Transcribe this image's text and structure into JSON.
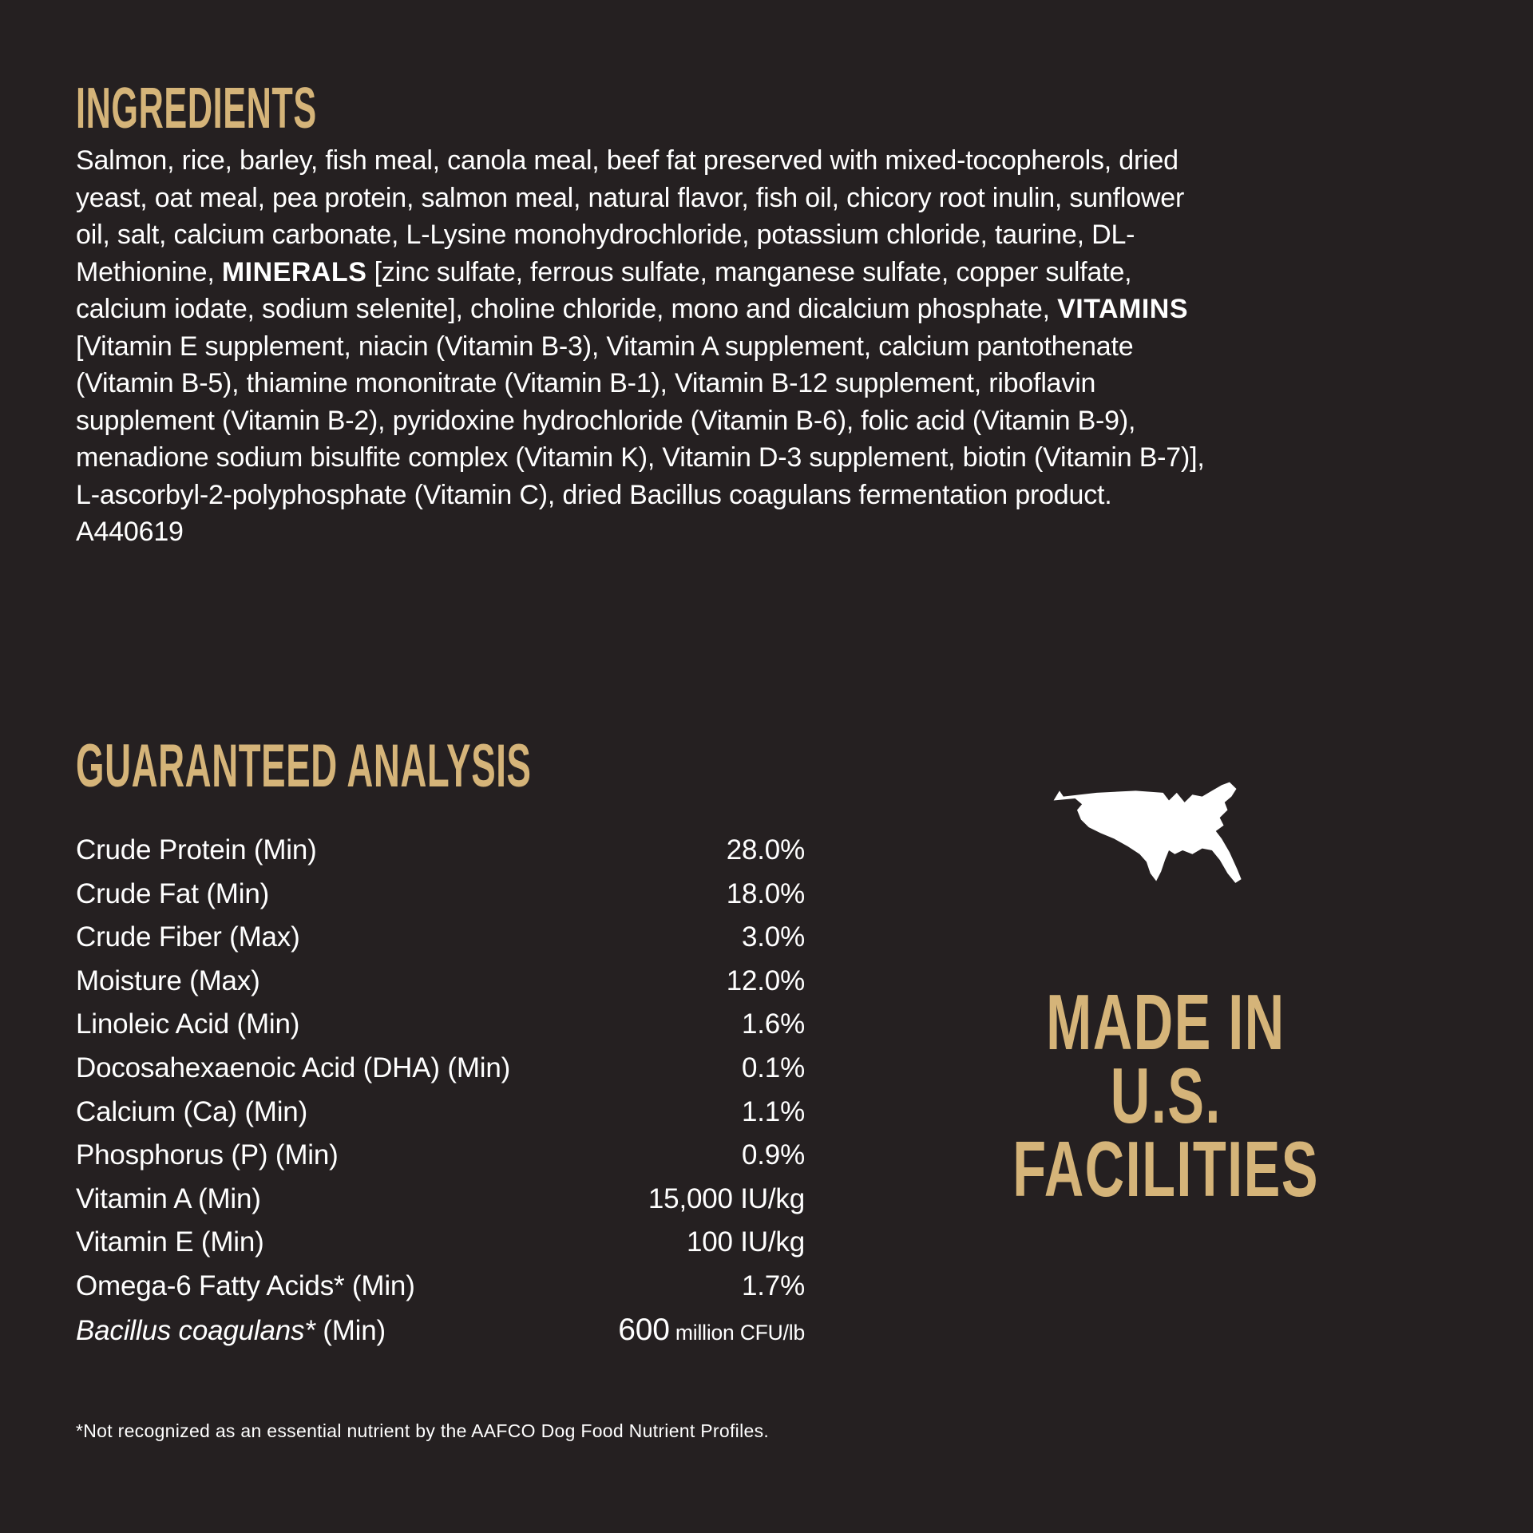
{
  "colors": {
    "background": "#252021",
    "gold": "#D5B479",
    "text": "#FFFFFF",
    "map": "#FFFFFF"
  },
  "ingredients": {
    "heading": "INGREDIENTS",
    "segments": [
      {
        "text": "Salmon, rice, barley, fish meal, canola meal, beef fat preserved with mixed-tocopherols, dried yeast, oat meal, pea protein, salmon meal, natural flavor, fish oil, chicory root inulin, sunflower oil, salt, calcium carbonate, L-Lysine monohydrochloride, potassium chloride, taurine, DL-Methionine, ",
        "bold": false,
        "italic": false
      },
      {
        "text": "MINERALS",
        "bold": true,
        "italic": false
      },
      {
        "text": " [zinc sulfate, ferrous sulfate, manganese sulfate, copper sulfate, calcium iodate, sodium selenite], choline chloride, mono and dicalcium phosphate, ",
        "bold": false,
        "italic": false
      },
      {
        "text": "VITAMINS",
        "bold": true,
        "italic": false
      },
      {
        "text": " [Vitamin E supplement, niacin (Vitamin B-3), Vitamin A supplement, calcium pantothenate (Vitamin B-5), thiamine mononitrate (Vitamin B-1), Vitamin B-12 supplement, riboflavin supplement (Vitamin B-2), pyridoxine hydrochloride (Vitamin B-6), folic acid (Vitamin B-9), menadione sodium bisulfite complex (Vitamin K), Vitamin D-3 supplement, biotin (Vitamin B-7)], L-ascorbyl-2-polyphosphate (Vitamin C), dried Bacillus coagulans fermentation product. A440619",
        "bold": false,
        "italic": false
      }
    ]
  },
  "guaranteed_analysis": {
    "heading": "GUARANTEED ANALYSIS",
    "rows": [
      {
        "label": [
          {
            "text": "Crude Protein (Min)",
            "italic": false
          }
        ],
        "value": [
          {
            "text": "28.0%",
            "size": "normal"
          }
        ]
      },
      {
        "label": [
          {
            "text": "Crude Fat (Min)",
            "italic": false
          }
        ],
        "value": [
          {
            "text": "18.0%",
            "size": "normal"
          }
        ]
      },
      {
        "label": [
          {
            "text": "Crude Fiber (Max)",
            "italic": false
          }
        ],
        "value": [
          {
            "text": "3.0%",
            "size": "normal"
          }
        ]
      },
      {
        "label": [
          {
            "text": "Moisture (Max)",
            "italic": false
          }
        ],
        "value": [
          {
            "text": "12.0%",
            "size": "normal"
          }
        ]
      },
      {
        "label": [
          {
            "text": "Linoleic Acid (Min)",
            "italic": false
          }
        ],
        "value": [
          {
            "text": "1.6%",
            "size": "normal"
          }
        ]
      },
      {
        "label": [
          {
            "text": "Docosahexaenoic Acid (DHA) (Min)",
            "italic": false
          }
        ],
        "value": [
          {
            "text": "0.1%",
            "size": "normal"
          }
        ]
      },
      {
        "label": [
          {
            "text": "Calcium (Ca) (Min)",
            "italic": false
          }
        ],
        "value": [
          {
            "text": "1.1%",
            "size": "normal"
          }
        ]
      },
      {
        "label": [
          {
            "text": "Phosphorus (P) (Min)",
            "italic": false
          }
        ],
        "value": [
          {
            "text": "0.9%",
            "size": "normal"
          }
        ]
      },
      {
        "label": [
          {
            "text": "Vitamin A (Min)",
            "italic": false
          }
        ],
        "value": [
          {
            "text": "15,000 IU/kg",
            "size": "normal"
          }
        ]
      },
      {
        "label": [
          {
            "text": "Vitamin E (Min)",
            "italic": false
          }
        ],
        "value": [
          {
            "text": "100 IU/kg",
            "size": "normal"
          }
        ]
      },
      {
        "label": [
          {
            "text": "Omega-6 Fatty Acids* (Min)",
            "italic": false
          }
        ],
        "value": [
          {
            "text": "1.7%",
            "size": "normal"
          }
        ]
      },
      {
        "label": [
          {
            "text": "Bacillus coagulans*",
            "italic": true
          },
          {
            "text": " (Min)",
            "italic": false
          }
        ],
        "value": [
          {
            "text": "600",
            "size": "big"
          },
          {
            "text": " million CFU/lb",
            "size": "small"
          }
        ]
      }
    ],
    "footnote": "*Not recognized as an essential nutrient by the AAFCO Dog Food Nutrient Profiles."
  },
  "made_in": {
    "icon": "usa-map-icon",
    "lines": [
      "MADE IN",
      "U.S.",
      "FACILITIES"
    ]
  }
}
